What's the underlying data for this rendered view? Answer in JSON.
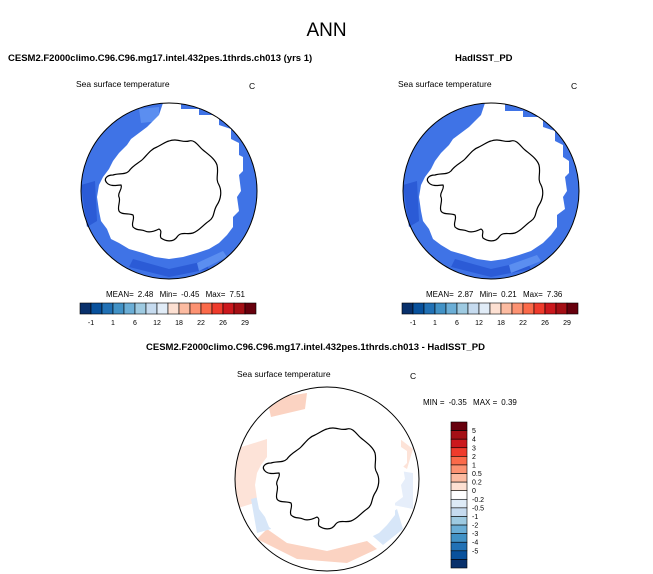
{
  "figure": {
    "title": "ANN",
    "variable": "Sea surface temperature",
    "units": "C"
  },
  "panels": {
    "model": {
      "title": "CESM2.F2000climo.C96.C96.mg17.intel.432pes.1thrds.ch013 (yrs 1)",
      "mean_label": "MEAN=",
      "mean": "2.48",
      "min_label": "Min=",
      "min": "-0.45",
      "max_label": "Max=",
      "max": "7.51"
    },
    "obs": {
      "title": "HadISST_PD",
      "mean_label": "MEAN=",
      "mean": "2.87",
      "min_label": "Min=",
      "min": "0.21",
      "max_label": "Max=",
      "max": "7.36"
    },
    "diff": {
      "title": "CESM2.F2000climo.C96.C96.mg17.intel.432pes.1thrds.ch013 - HadISST_PD",
      "min_label": "MIN =",
      "min": "-0.35",
      "max_label": "MAX =",
      "max": "0.39"
    }
  },
  "colorbar_abs": {
    "labels": [
      "-1",
      "1",
      "6",
      "12",
      "18",
      "22",
      "26",
      "29"
    ],
    "colors": [
      "#08306b",
      "#08519c",
      "#2171b5",
      "#4292c6",
      "#6baed6",
      "#9ecae1",
      "#c6dbef",
      "#e1ecf7",
      "#fde0d2",
      "#fcbba1",
      "#fc9272",
      "#fb6a4a",
      "#ef3b2c",
      "#cb181d",
      "#a50f15",
      "#67000d"
    ]
  },
  "colorbar_diff": {
    "labels": [
      "5",
      "4",
      "3",
      "2",
      "1",
      "0.5",
      "0.2",
      "0",
      "-0.2",
      "-0.5",
      "-1",
      "-2",
      "-3",
      "-4",
      "-5"
    ],
    "colors": [
      "#67000d",
      "#a50f15",
      "#cb181d",
      "#ef3b2c",
      "#fb6a4a",
      "#fc9272",
      "#fcbba1",
      "#fde0d2",
      "#ffffff",
      "#deebf7",
      "#c6dbef",
      "#9ecae1",
      "#6baed6",
      "#4292c6",
      "#2171b5",
      "#08519c",
      "#08306b"
    ]
  },
  "map_colors": {
    "ocean_abs_main": "#3f73e6",
    "ocean_abs_light": "#5b8ef0",
    "ocean_abs_dark": "#2b5bd6",
    "diff_light_red": "#fbd3c2",
    "diff_light_blue": "#d7e6f8",
    "diff_pale_red": "#fde3d8",
    "diff_pale_blue": "#e6eefa"
  }
}
